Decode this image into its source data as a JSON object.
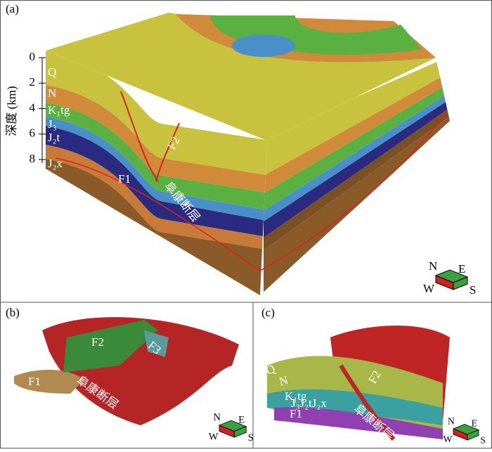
{
  "panel_a": {
    "label": "(a)",
    "depth_axis": {
      "label": "深度 (km)",
      "ticks": [
        0,
        2,
        4,
        6,
        8
      ]
    },
    "layers": [
      "Q",
      "N",
      "K₁tg",
      "J₃",
      "J₂t",
      "J₂x"
    ],
    "faults": [
      "F1",
      "F2"
    ],
    "fault_name": "阜康断层",
    "compass": [
      "N",
      "E",
      "W",
      "S"
    ]
  },
  "panel_b": {
    "label": "(b)",
    "faults": [
      "F2",
      "F3",
      "F1"
    ],
    "fault_name": "阜康断层",
    "compass": [
      "N",
      "E",
      "W",
      "S"
    ]
  },
  "panel_c": {
    "label": "(c)",
    "layers": [
      "Q",
      "N",
      "K₁tg",
      "J₃J₂tJ₂x"
    ],
    "faults": [
      "F1",
      "F2"
    ],
    "fault_name": "阜康断层",
    "compass": [
      "N",
      "E",
      "W",
      "S"
    ]
  }
}
